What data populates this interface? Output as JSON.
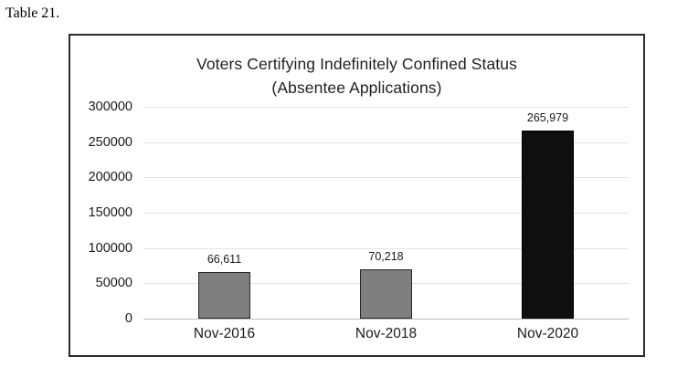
{
  "page": {
    "caption": "Table 21."
  },
  "chart": {
    "title_line1": "Voters Certifying Indefinitely Confined Status",
    "title_line2": "(Absentee Applications)"
  },
  "chart_data": {
    "type": "bar",
    "title": "Voters Certifying Indefinitely Confined Status (Absentee Applications)",
    "categories": [
      "Nov-2016",
      "Nov-2018",
      "Nov-2020"
    ],
    "values": [
      66611,
      70218,
      265979
    ],
    "data_labels": [
      "66,611",
      "70,218",
      "265,979"
    ],
    "bar_colors": [
      "#7f7f7f",
      "#7f7f7f",
      "#0f0f0f"
    ],
    "bar_border_colors": [
      "#262626",
      "#262626",
      "#000000"
    ],
    "xlabel": "",
    "ylabel": "",
    "ylim": [
      0,
      300000
    ],
    "ytick_interval": 50000,
    "ytick_labels_top_to_bottom": [
      "300000",
      "250000",
      "200000",
      "150000",
      "100000",
      "50000",
      "0"
    ],
    "grid": "horizontal",
    "legend": "none"
  }
}
